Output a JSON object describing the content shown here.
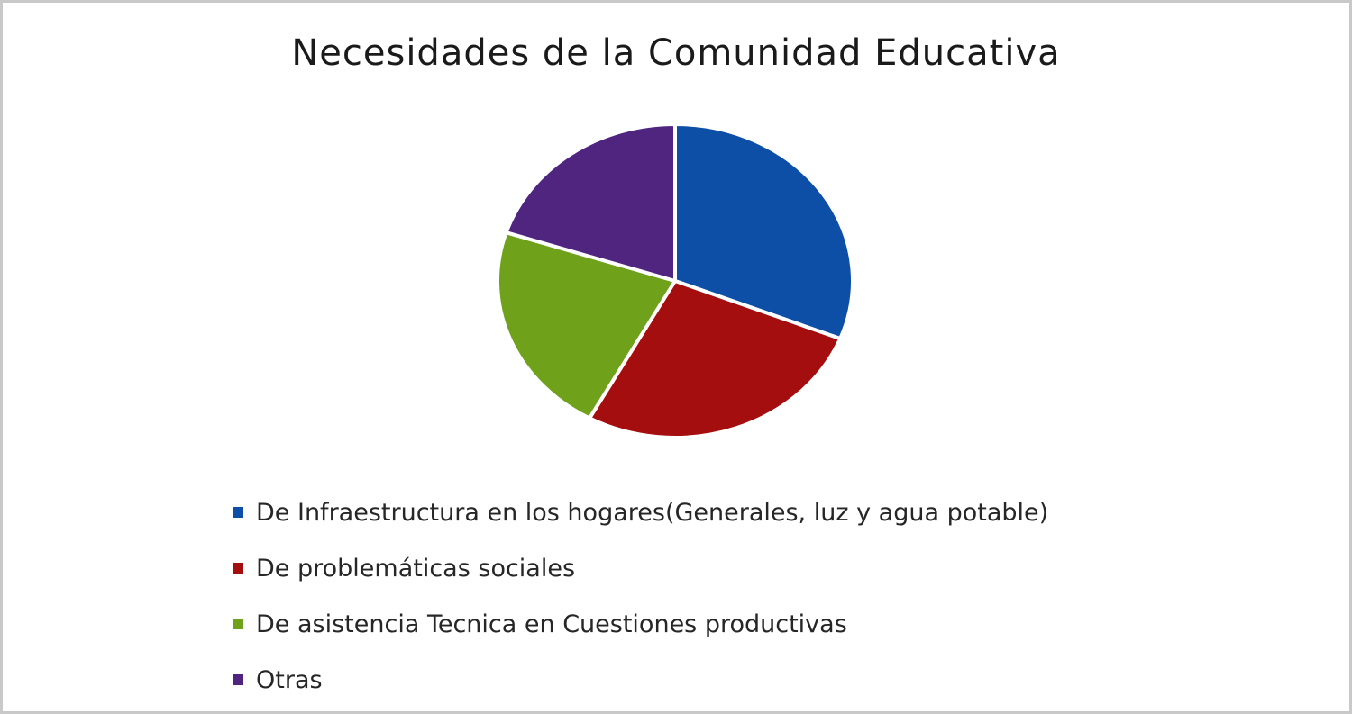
{
  "chart_data": {
    "type": "pie",
    "title": "Necesidades de la Comunidad Educativa",
    "categories": [
      "De Infraestructura en los hogares(Generales, luz y agua potable)",
      "De problemáticas sociales",
      "De asistencia Tecnica en Cuestiones productivas",
      "Otras"
    ],
    "values": [
      31,
      27,
      22,
      20
    ],
    "colors": [
      "#0d4ea6",
      "#a50e0e",
      "#70a11b",
      "#4f2580"
    ],
    "legend_position": "bottom",
    "data_labels": false
  }
}
